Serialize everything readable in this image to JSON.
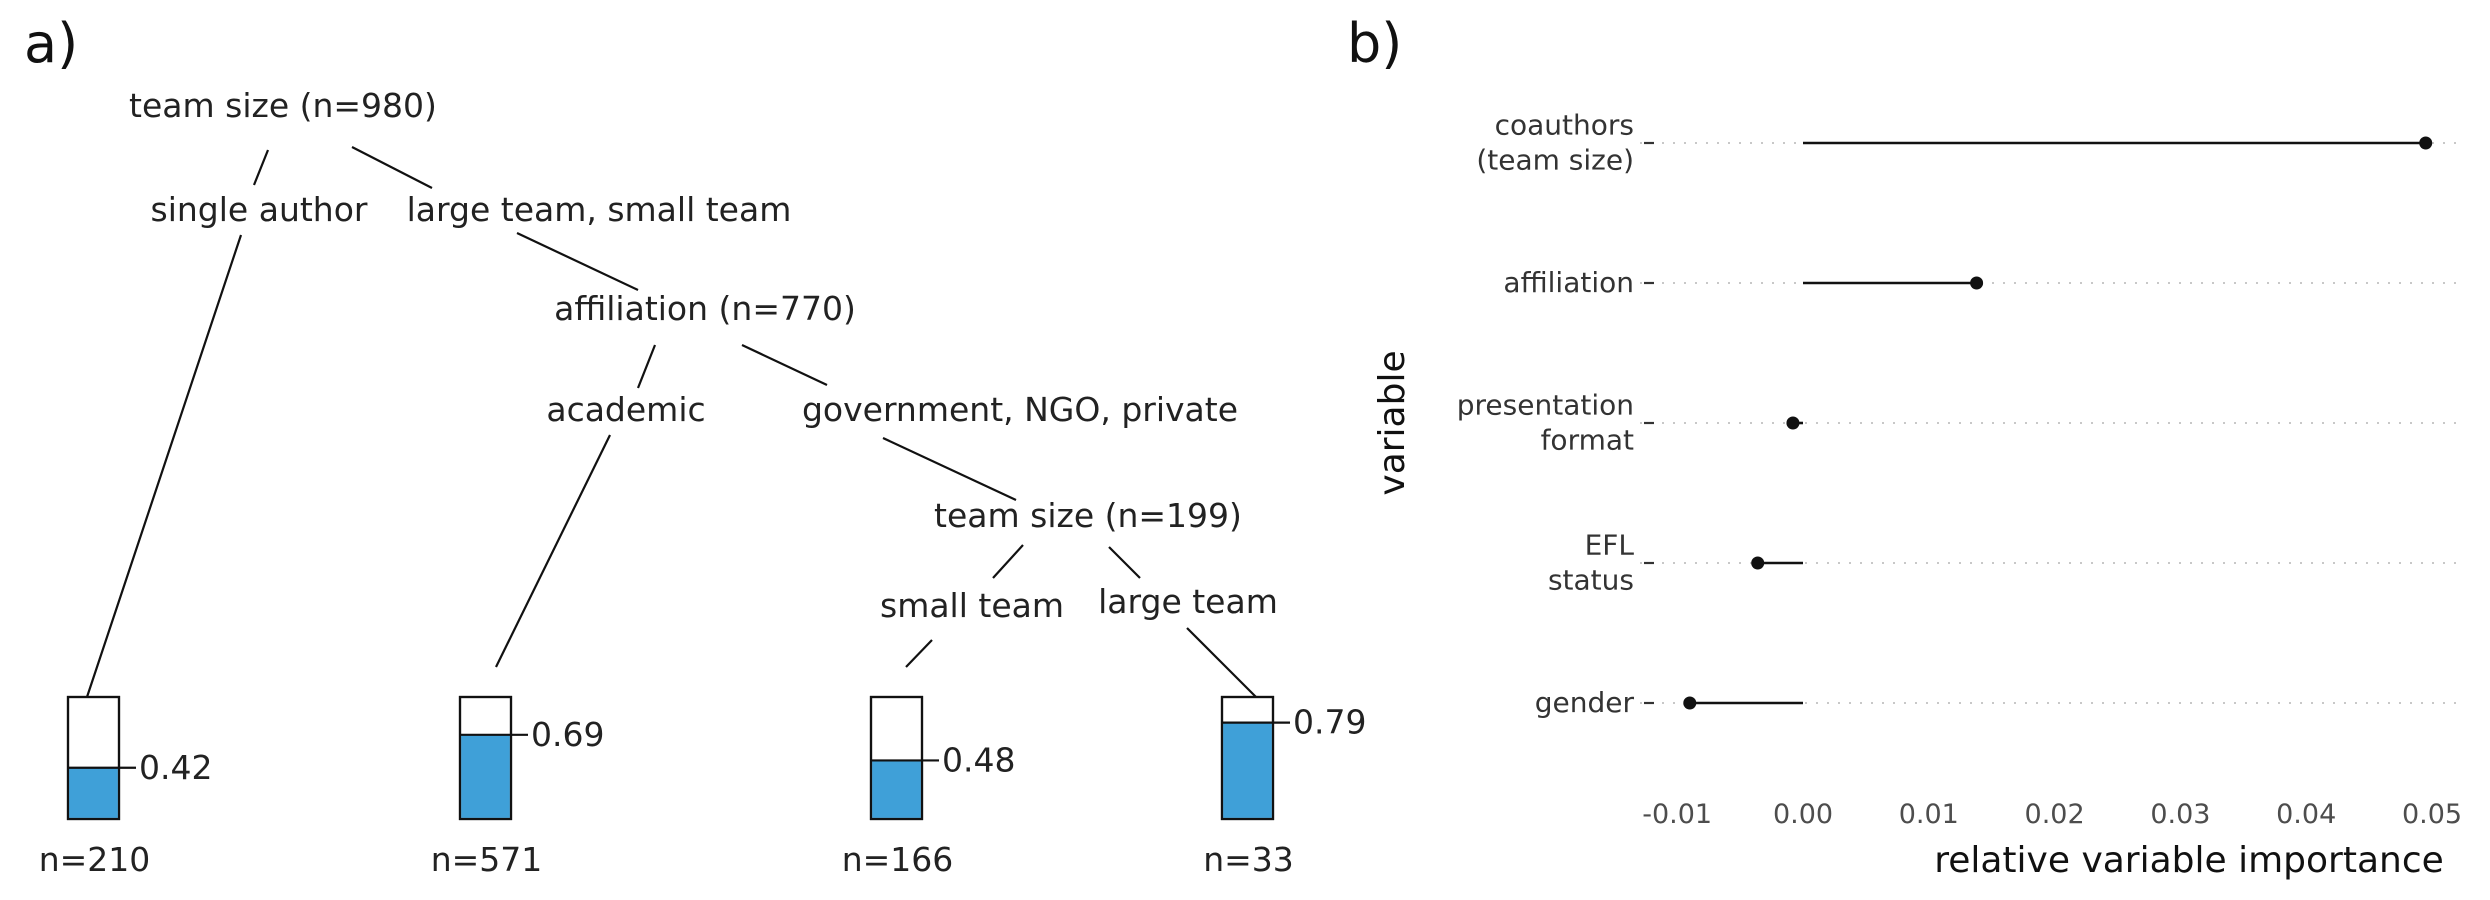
{
  "panels": {
    "a": "a)",
    "b": "b)"
  },
  "chart_data": [
    {
      "type": "tree",
      "colors": {
        "fill": "#3fa0d8",
        "line": "#111111"
      },
      "nodes": [
        {
          "id": "root",
          "label": "team size (n=980)"
        },
        {
          "id": "aff",
          "label": "affiliation (n=770)"
        },
        {
          "id": "team2",
          "label": "team size (n=199)"
        }
      ],
      "edges": [
        {
          "label": "single author"
        },
        {
          "label": "large team, small team"
        },
        {
          "label": "academic"
        },
        {
          "label": "government, NGO, private"
        },
        {
          "label": "small team"
        },
        {
          "label": "large team"
        }
      ],
      "leaves": [
        {
          "value": 0.42,
          "value_label": "0.42",
          "n_label": "n=210"
        },
        {
          "value": 0.69,
          "value_label": "0.69",
          "n_label": "n=571"
        },
        {
          "value": 0.48,
          "value_label": "0.48",
          "n_label": "n=166"
        },
        {
          "value": 0.79,
          "value_label": "0.79",
          "n_label": "n=33"
        }
      ]
    },
    {
      "type": "lollipop",
      "orientation": "horizontal",
      "xlabel": "relative variable importance",
      "ylabel": "variable",
      "xlim": [
        -0.012,
        0.052
      ],
      "xticks": [
        -0.01,
        0.0,
        0.01,
        0.02,
        0.03,
        0.04,
        0.05
      ],
      "xtick_labels": [
        "-0.01",
        "0.00",
        "0.01",
        "0.02",
        "0.03",
        "0.04",
        "0.05"
      ],
      "baseline": 0,
      "grid": "horizontal dotted",
      "categories": [
        [
          "coauthors",
          "(team size)"
        ],
        [
          "affiliation"
        ],
        [
          "presentation",
          "format"
        ],
        [
          "EFL",
          "status"
        ],
        [
          "gender"
        ]
      ],
      "values": [
        0.0495,
        0.0138,
        -0.0008,
        -0.0036,
        -0.009
      ]
    }
  ]
}
